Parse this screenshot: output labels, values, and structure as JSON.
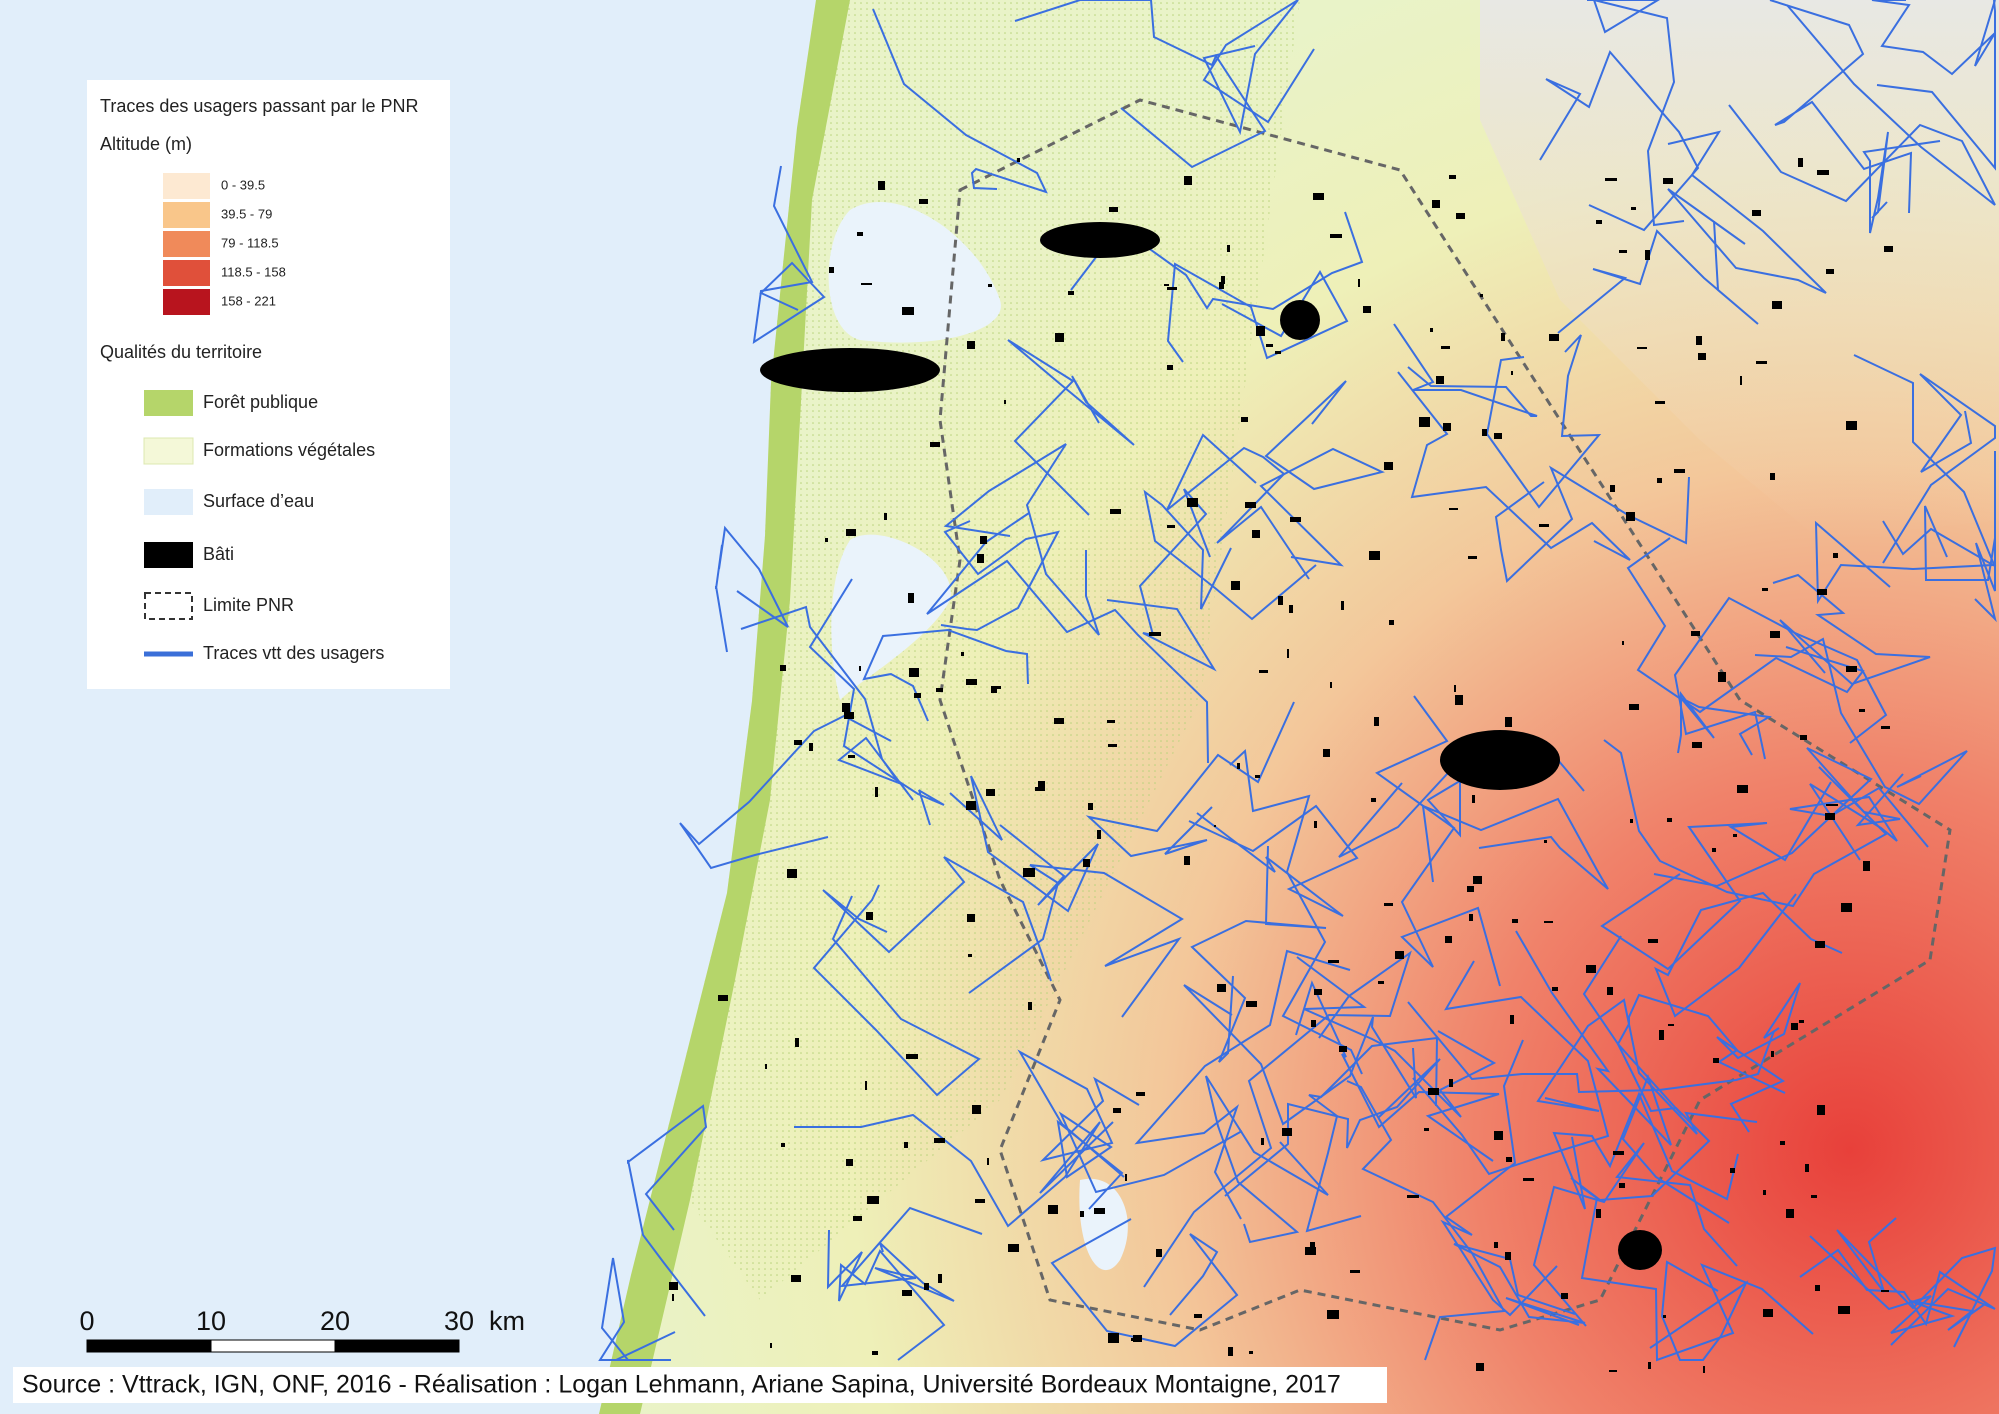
{
  "legend": {
    "title": "Traces des usagers passant par le PNR",
    "altitude_title": "Altitude (m)",
    "altitude_classes": [
      {
        "label": "0 - 39.5",
        "color": "#fde9d2"
      },
      {
        "label": "39.5 - 79",
        "color": "#f9c68a"
      },
      {
        "label": "79 - 118.5",
        "color": "#f08a5a"
      },
      {
        "label": "118.5 - 158",
        "color": "#e0503a"
      },
      {
        "label": "158 - 221",
        "color": "#b8141e"
      }
    ],
    "qualities_title": "Qualités du territoire",
    "qualities": [
      {
        "label": "Forêt publique"
      },
      {
        "label": "Formations végétales"
      },
      {
        "label": "Surface d’eau"
      },
      {
        "label": "Bâti"
      },
      {
        "label": "Limite PNR"
      },
      {
        "label": "Traces vtt des usagers"
      }
    ]
  },
  "scale_bar": {
    "ticks": [
      "0",
      "10",
      "20",
      "30"
    ],
    "unit": "km"
  },
  "source": "Source : Vttrack, IGN, ONF, 2016 - Réalisation : Logan Lehmann, Ariane Sapina, Université Bordeaux Montaigne, 2017"
}
